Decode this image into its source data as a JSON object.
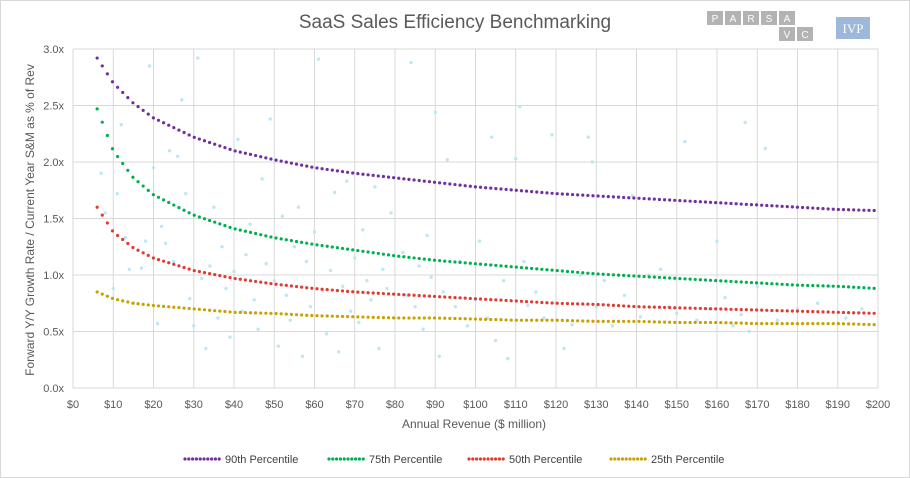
{
  "chart_data": {
    "type": "scatter",
    "title": "SaaS Sales Efficiency Benchmarking",
    "xlabel": "Annual Revenue ($ million)",
    "ylabel": "Forward Y/Y Growth Rate / Current Year S&M as % of Rev",
    "xlim": [
      0,
      200
    ],
    "ylim": [
      0,
      3.0
    ],
    "x_ticks": [
      "$0",
      "$10",
      "$20",
      "$30",
      "$40",
      "$50",
      "$60",
      "$70",
      "$80",
      "$90",
      "$100",
      "$110",
      "$120",
      "$130",
      "$140",
      "$150",
      "$160",
      "$170",
      "$180",
      "$190",
      "$200"
    ],
    "x_tick_values": [
      0,
      10,
      20,
      30,
      40,
      50,
      60,
      70,
      80,
      90,
      100,
      110,
      120,
      130,
      140,
      150,
      160,
      170,
      180,
      190,
      200
    ],
    "y_ticks": [
      "0.0x",
      "0.5x",
      "1.0x",
      "1.5x",
      "2.0x",
      "2.5x",
      "3.0x"
    ],
    "y_tick_values": [
      0,
      0.5,
      1.0,
      1.5,
      2.0,
      2.5,
      3.0
    ],
    "grid": true,
    "legend_position": "bottom",
    "scatter_color": "#bfe6f5",
    "series": [
      {
        "name": "90th Percentile",
        "color": "#7030a0",
        "style": "dotted",
        "x": [
          6,
          10,
          15,
          20,
          30,
          40,
          50,
          60,
          70,
          80,
          90,
          100,
          110,
          120,
          130,
          140,
          150,
          160,
          170,
          180,
          190,
          200
        ],
        "y": [
          2.92,
          2.7,
          2.52,
          2.39,
          2.22,
          2.1,
          2.02,
          1.95,
          1.9,
          1.86,
          1.82,
          1.78,
          1.75,
          1.72,
          1.7,
          1.68,
          1.66,
          1.64,
          1.62,
          1.6,
          1.58,
          1.57
        ]
      },
      {
        "name": "75th Percentile",
        "color": "#00b050",
        "style": "dotted",
        "x": [
          6,
          10,
          15,
          20,
          30,
          40,
          50,
          60,
          70,
          80,
          90,
          100,
          110,
          120,
          130,
          140,
          150,
          160,
          170,
          180,
          190,
          200
        ],
        "y": [
          2.47,
          2.1,
          1.86,
          1.71,
          1.53,
          1.41,
          1.33,
          1.27,
          1.22,
          1.17,
          1.13,
          1.1,
          1.07,
          1.04,
          1.01,
          0.99,
          0.97,
          0.95,
          0.93,
          0.91,
          0.9,
          0.88
        ]
      },
      {
        "name": "50th Percentile",
        "color": "#e03c31",
        "style": "dotted",
        "x": [
          6,
          10,
          15,
          20,
          30,
          40,
          50,
          60,
          70,
          80,
          90,
          100,
          110,
          120,
          130,
          140,
          150,
          160,
          170,
          180,
          190,
          200
        ],
        "y": [
          1.6,
          1.38,
          1.24,
          1.15,
          1.04,
          0.97,
          0.92,
          0.88,
          0.85,
          0.83,
          0.81,
          0.79,
          0.77,
          0.75,
          0.74,
          0.72,
          0.71,
          0.7,
          0.69,
          0.68,
          0.67,
          0.66
        ]
      },
      {
        "name": "25th Percentile",
        "color": "#c9a100",
        "style": "dotted",
        "x": [
          6,
          10,
          15,
          20,
          30,
          40,
          50,
          60,
          70,
          80,
          90,
          100,
          110,
          120,
          130,
          140,
          150,
          160,
          170,
          180,
          190,
          200
        ],
        "y": [
          0.85,
          0.79,
          0.75,
          0.73,
          0.7,
          0.67,
          0.66,
          0.64,
          0.63,
          0.62,
          0.62,
          0.61,
          0.6,
          0.6,
          0.59,
          0.59,
          0.58,
          0.58,
          0.57,
          0.57,
          0.57,
          0.56
        ]
      }
    ],
    "points": [
      [
        7,
        1.9
      ],
      [
        8,
        1.55
      ],
      [
        10,
        0.88
      ],
      [
        11,
        1.72
      ],
      [
        12,
        2.33
      ],
      [
        13,
        1.33
      ],
      [
        14,
        1.05
      ],
      [
        15,
        0.75
      ],
      [
        17,
        1.06
      ],
      [
        18,
        1.3
      ],
      [
        19,
        2.85
      ],
      [
        20,
        1.95
      ],
      [
        21,
        0.57
      ],
      [
        22,
        1.43
      ],
      [
        23,
        1.28
      ],
      [
        24,
        2.1
      ],
      [
        25,
        1.12
      ],
      [
        26,
        2.05
      ],
      [
        27,
        2.55
      ],
      [
        28,
        1.72
      ],
      [
        29,
        0.79
      ],
      [
        30,
        0.55
      ],
      [
        31,
        2.92
      ],
      [
        32,
        0.97
      ],
      [
        33,
        0.35
      ],
      [
        34,
        1.08
      ],
      [
        35,
        1.6
      ],
      [
        36,
        0.62
      ],
      [
        37,
        1.25
      ],
      [
        38,
        0.88
      ],
      [
        39,
        0.45
      ],
      [
        40,
        1.03
      ],
      [
        41,
        2.2
      ],
      [
        42,
        0.68
      ],
      [
        43,
        1.18
      ],
      [
        44,
        1.45
      ],
      [
        45,
        0.78
      ],
      [
        46,
        0.52
      ],
      [
        47,
        1.85
      ],
      [
        48,
        1.1
      ],
      [
        49,
        2.38
      ],
      [
        50,
        0.95
      ],
      [
        51,
        0.37
      ],
      [
        52,
        1.52
      ],
      [
        53,
        0.82
      ],
      [
        54,
        0.6
      ],
      [
        55,
        1.25
      ],
      [
        56,
        1.6
      ],
      [
        57,
        0.28
      ],
      [
        58,
        1.12
      ],
      [
        59,
        0.72
      ],
      [
        60,
        1.38
      ],
      [
        61,
        2.91
      ],
      [
        62,
        0.86
      ],
      [
        63,
        0.48
      ],
      [
        64,
        1.04
      ],
      [
        65,
        1.73
      ],
      [
        66,
        0.32
      ],
      [
        67,
        0.9
      ],
      [
        68,
        1.83
      ],
      [
        69,
        0.68
      ],
      [
        70,
        1.15
      ],
      [
        71,
        0.58
      ],
      [
        72,
        1.4
      ],
      [
        73,
        0.95
      ],
      [
        74,
        0.78
      ],
      [
        75,
        1.78
      ],
      [
        76,
        0.35
      ],
      [
        77,
        1.05
      ],
      [
        78,
        0.88
      ],
      [
        79,
        1.55
      ],
      [
        80,
        0.62
      ],
      [
        82,
        1.2
      ],
      [
        83,
        0.82
      ],
      [
        84,
        2.88
      ],
      [
        85,
        0.72
      ],
      [
        86,
        1.08
      ],
      [
        87,
        0.52
      ],
      [
        88,
        1.35
      ],
      [
        89,
        0.98
      ],
      [
        90,
        2.44
      ],
      [
        91,
        0.28
      ],
      [
        92,
        0.85
      ],
      [
        93,
        2.02
      ],
      [
        95,
        0.72
      ],
      [
        96,
        1.12
      ],
      [
        98,
        0.55
      ],
      [
        100,
        0.78
      ],
      [
        101,
        1.3
      ],
      [
        103,
        0.62
      ],
      [
        104,
        2.22
      ],
      [
        105,
        0.42
      ],
      [
        107,
        0.95
      ],
      [
        108,
        0.26
      ],
      [
        110,
        2.03
      ],
      [
        111,
        2.49
      ],
      [
        112,
        1.12
      ],
      [
        113,
        0.73
      ],
      [
        115,
        0.85
      ],
      [
        117,
        0.62
      ],
      [
        119,
        2.24
      ],
      [
        120,
        0.75
      ],
      [
        122,
        0.35
      ],
      [
        124,
        0.56
      ],
      [
        126,
        1.0
      ],
      [
        128,
        2.22
      ],
      [
        129,
        2.0
      ],
      [
        130,
        0.72
      ],
      [
        132,
        0.95
      ],
      [
        134,
        0.55
      ],
      [
        137,
        0.82
      ],
      [
        139,
        1.7
      ],
      [
        141,
        0.63
      ],
      [
        143,
        1.0
      ],
      [
        146,
        1.05
      ],
      [
        148,
        0.72
      ],
      [
        150,
        0.66
      ],
      [
        152,
        2.18
      ],
      [
        155,
        0.6
      ],
      [
        158,
        0.7
      ],
      [
        160,
        1.3
      ],
      [
        162,
        0.8
      ],
      [
        164,
        0.55
      ],
      [
        166,
        0.65
      ],
      [
        167,
        2.35
      ],
      [
        168,
        0.5
      ],
      [
        170,
        0.9
      ],
      [
        172,
        2.12
      ],
      [
        175,
        0.6
      ],
      [
        180,
        0.7
      ],
      [
        185,
        0.75
      ],
      [
        188,
        0.9
      ],
      [
        192,
        0.62
      ],
      [
        196,
        0.7
      ]
    ]
  },
  "logos": {
    "parsa_letters": [
      "P",
      "A",
      "R",
      "S",
      "A"
    ],
    "parsa_sub": [
      "V",
      "C"
    ],
    "ivp": "IVP",
    "parsa_color": "#b3b3b3",
    "ivp_color": "#9db8d9"
  }
}
